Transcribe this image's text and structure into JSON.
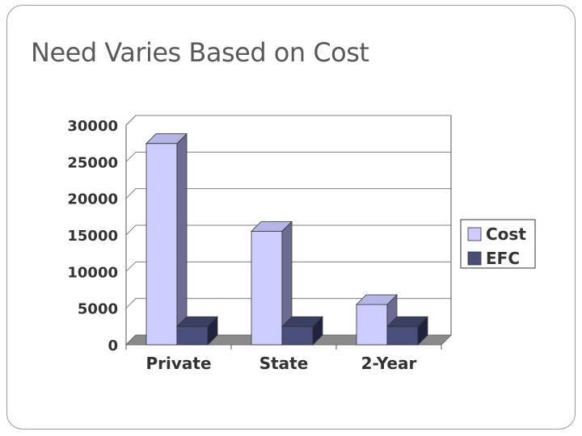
{
  "slide": {
    "title": "Need Varies Based on Cost"
  },
  "colors": {
    "cost_front": "#ccccff",
    "cost_side": "#6b6b94",
    "cost_top": "#b5b5e6",
    "efc_front": "#4a4f7a",
    "efc_side": "#20233f",
    "efc_top": "#3a3f64",
    "floor": "#8a8a8a",
    "grid": "#7f7f7f"
  },
  "chart_data": {
    "type": "bar",
    "title": "",
    "xlabel": "",
    "ylabel": "",
    "categories": [
      "Private",
      "State",
      "2-Year"
    ],
    "series": [
      {
        "name": "Cost",
        "values": [
          27500,
          15500,
          5500
        ]
      },
      {
        "name": "EFC",
        "values": [
          2500,
          2500,
          2500
        ]
      }
    ],
    "ylim": [
      0,
      30000
    ],
    "yticks": [
      0,
      5000,
      10000,
      15000,
      20000,
      25000,
      30000
    ],
    "grid": true,
    "legend": "right",
    "three_d": true
  }
}
